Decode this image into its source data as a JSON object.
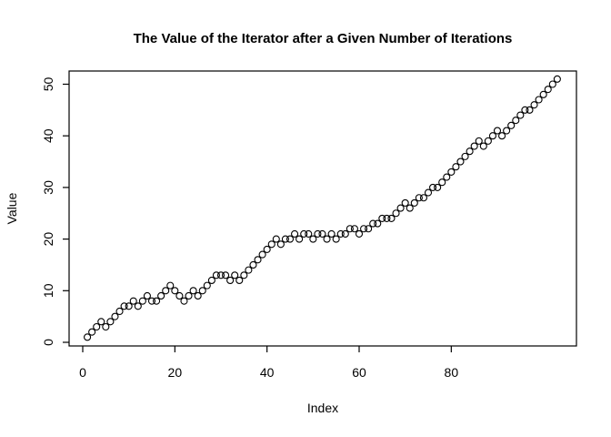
{
  "title": "The Value of the Iterator after a Given Number of Iterations",
  "colors": {
    "background": "#ffffff",
    "foreground": "#000000"
  },
  "chart_data": {
    "type": "scatter",
    "title": "The Value of the Iterator after a Given Number of Iterations",
    "xlabel": "Index",
    "ylabel": "Value",
    "marker": "open-circle",
    "marker_color": "#000000",
    "grid": false,
    "legend": "none",
    "x_ticks": [
      0,
      20,
      40,
      60,
      80
    ],
    "y_ticks": [
      0,
      10,
      20,
      30,
      40,
      50
    ],
    "xlim": [
      -3,
      107
    ],
    "ylim": [
      -1,
      53
    ],
    "x": [
      1,
      2,
      3,
      4,
      5,
      6,
      7,
      8,
      9,
      10,
      11,
      12,
      13,
      14,
      15,
      16,
      17,
      18,
      19,
      20,
      21,
      22,
      23,
      24,
      25,
      26,
      27,
      28,
      29,
      30,
      31,
      32,
      33,
      34,
      35,
      36,
      37,
      38,
      39,
      40,
      41,
      42,
      43,
      44,
      45,
      46,
      47,
      48,
      49,
      50,
      51,
      52,
      53,
      54,
      55,
      56,
      57,
      58,
      59,
      60,
      61,
      62,
      63,
      64,
      65,
      66,
      67,
      68,
      69,
      70,
      71,
      72,
      73,
      74,
      75,
      76,
      77,
      78,
      79,
      80,
      81,
      82,
      83,
      84,
      85,
      86,
      87,
      88,
      89,
      90,
      91,
      92,
      93,
      94,
      95,
      96,
      97,
      98,
      99,
      100,
      101,
      102,
      103
    ],
    "values": [
      1,
      2,
      3,
      4,
      3,
      4,
      5,
      6,
      7,
      7,
      8,
      7,
      8,
      9,
      8,
      8,
      9,
      10,
      11,
      10,
      9,
      8,
      9,
      10,
      9,
      10,
      11,
      12,
      13,
      13,
      13,
      12,
      13,
      12,
      13,
      14,
      15,
      16,
      17,
      18,
      19,
      20,
      19,
      20,
      20,
      21,
      20,
      21,
      21,
      20,
      21,
      21,
      20,
      21,
      20,
      21,
      21,
      22,
      22,
      21,
      22,
      22,
      23,
      23,
      24,
      24,
      24,
      25,
      26,
      27,
      26,
      27,
      28,
      28,
      29,
      30,
      30,
      31,
      32,
      33,
      34,
      35,
      36,
      37,
      38,
      39,
      38,
      39,
      40,
      41,
      40,
      41,
      42,
      43,
      44,
      45,
      45,
      46,
      47,
      48,
      49,
      50,
      51
    ]
  }
}
